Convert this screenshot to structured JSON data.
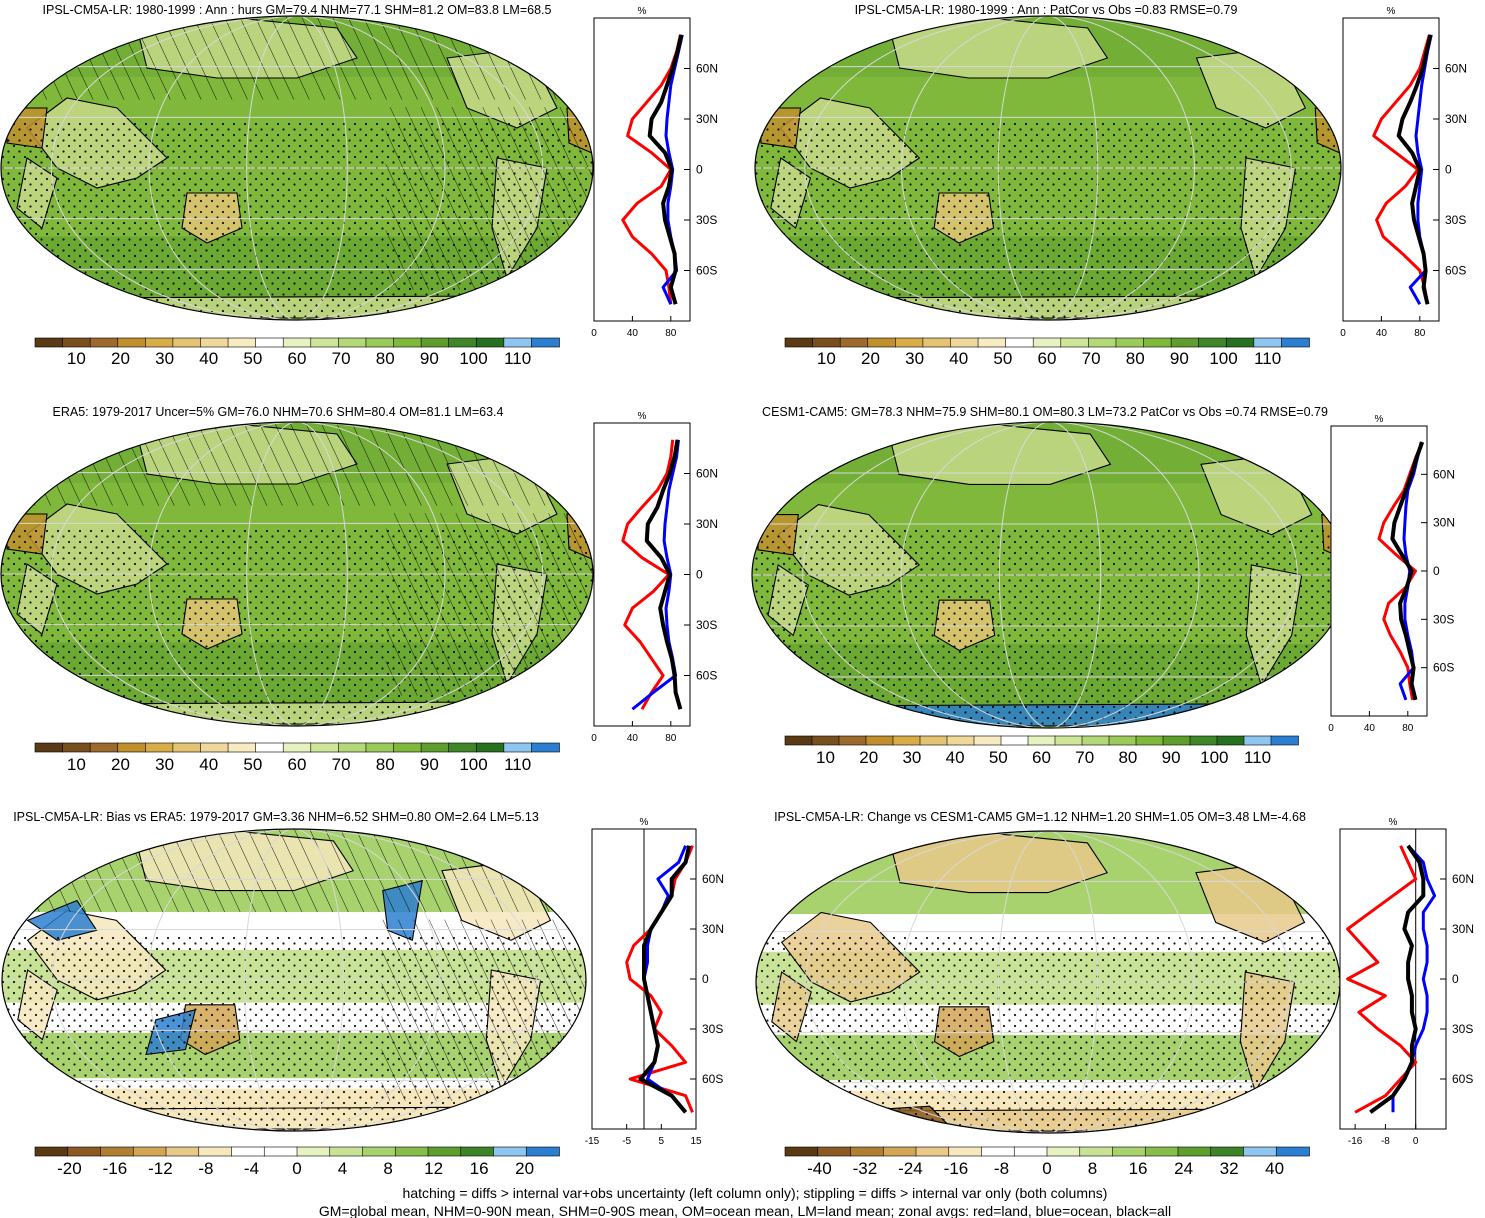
{
  "footer": {
    "line1": "hatching = diffs > internal var+obs uncertainty (left column only); stippling = diffs > internal var only (both columns)",
    "line2": "GM=global mean, NHM=0-90N mean, SHM=0-90S mean, OM=ocean mean, LM=land mean; zonal avgs: red=land, blue=ocean, black=all"
  },
  "colors": {
    "land": "#ff0000",
    "ocean": "#0000ff",
    "all": "#000000",
    "map_fill": "#7fb83a",
    "abs_palette": [
      "#5a3a14",
      "#7a4f1e",
      "#9b6a2c",
      "#c08f2e",
      "#d8ad48",
      "#e4c474",
      "#efd89a",
      "#f7ebc2",
      "#ffffff",
      "#e6f2c0",
      "#cde69a",
      "#b4d878",
      "#9bca5a",
      "#7fb83a",
      "#5f9e2e",
      "#3f8628",
      "#26701f",
      "#8ec6f0",
      "#2c7fd0"
    ],
    "diff_palette": [
      "#5a3a14",
      "#8a5a22",
      "#b07f33",
      "#d2a655",
      "#e8c98a",
      "#f6e7bd",
      "#ffffff",
      "#ffffff",
      "#e6f2c0",
      "#c8e396",
      "#a8d26e",
      "#86bd4b",
      "#5f9e2e",
      "#3d8327",
      "#8ec6f0",
      "#2c7fd0"
    ]
  },
  "chart_data": [
    {
      "type": "heatmap",
      "panel": "model-climatology",
      "title": "IPSL-CM5A-LR: 1980-1999 : Ann : hurs GM=79.4 NHM=77.1 SHM=81.2 OM=83.8 LM=68.5",
      "colorbar_ticks": [
        "10",
        "20",
        "30",
        "40",
        "50",
        "60",
        "70",
        "80",
        "90",
        "100",
        "110"
      ],
      "hatching": true,
      "zonal": {
        "unit_label": "%",
        "xlim": [
          0,
          100
        ],
        "xticks": [
          "0",
          "40",
          "80"
        ],
        "ylim": [
          -90,
          90
        ],
        "yticks": [
          "60N",
          "30N",
          "0",
          "30S",
          "60S"
        ],
        "lat": [
          80,
          70,
          60,
          50,
          40,
          30,
          20,
          10,
          0,
          -10,
          -20,
          -30,
          -40,
          -50,
          -60,
          -70,
          -80
        ],
        "series": [
          {
            "name": "land",
            "values": [
              90,
              86,
              80,
              70,
              55,
              40,
              35,
              60,
              80,
              70,
              45,
              30,
              40,
              60,
              75,
              78,
              80
            ]
          },
          {
            "name": "ocean",
            "values": [
              92,
              88,
              84,
              80,
              78,
              76,
              75,
              78,
              82,
              80,
              77,
              77,
              80,
              84,
              86,
              72,
              80
            ]
          },
          {
            "name": "all",
            "values": [
              91,
              87,
              82,
              76,
              70,
              60,
              58,
              74,
              81,
              78,
              72,
              74,
              79,
              84,
              85,
              80,
              85
            ]
          }
        ]
      }
    },
    {
      "type": "heatmap",
      "panel": "pattern-vs-obs",
      "title": "IPSL-CM5A-LR: 1980-1999 : Ann : PatCor vs Obs =0.83 RMSE=0.79",
      "colorbar_ticks": [
        "10",
        "20",
        "30",
        "40",
        "50",
        "60",
        "70",
        "80",
        "90",
        "100",
        "110"
      ],
      "hatching": false,
      "zonal": {
        "unit_label": "%",
        "xlim": [
          0,
          100
        ],
        "xticks": [
          "0",
          "40",
          "80"
        ],
        "ylim": [
          -90,
          90
        ],
        "yticks": [
          "60N",
          "30N",
          "0",
          "30S",
          "60S"
        ],
        "lat": [
          80,
          70,
          60,
          50,
          40,
          30,
          20,
          10,
          0,
          -10,
          -20,
          -30,
          -40,
          -50,
          -60,
          -70,
          -80
        ],
        "series": [
          {
            "name": "land",
            "values": [
              90,
              85,
              80,
              70,
              55,
              40,
              32,
              55,
              78,
              65,
              45,
              35,
              42,
              62,
              80,
              85,
              88
            ]
          },
          {
            "name": "ocean",
            "values": [
              92,
              88,
              85,
              82,
              80,
              78,
              76,
              78,
              82,
              80,
              78,
              78,
              80,
              84,
              86,
              70,
              80
            ]
          },
          {
            "name": "all",
            "values": [
              91,
              87,
              83,
              77,
              70,
              62,
              58,
              72,
              80,
              76,
              72,
              74,
              79,
              84,
              86,
              84,
              88
            ]
          }
        ]
      }
    },
    {
      "type": "heatmap",
      "panel": "reanalysis",
      "title": "ERA5: 1979-2017 Uncer=5% GM=76.0 NHM=70.6 SHM=80.4 OM=81.1 LM=63.4",
      "colorbar_ticks": [
        "10",
        "20",
        "30",
        "40",
        "50",
        "60",
        "70",
        "80",
        "90",
        "100",
        "110"
      ],
      "hatching": true,
      "zonal": {
        "unit_label": "%",
        "xlim": [
          0,
          100
        ],
        "xticks": [
          "0",
          "40",
          "80"
        ],
        "ylim": [
          -90,
          90
        ],
        "yticks": [
          "60N",
          "30N",
          "0",
          "30S",
          "60S"
        ],
        "lat": [
          80,
          70,
          60,
          50,
          40,
          30,
          20,
          10,
          0,
          -10,
          -20,
          -30,
          -40,
          -50,
          -60,
          -70,
          -80
        ],
        "series": [
          {
            "name": "land",
            "values": [
              82,
              80,
              76,
              66,
              50,
              35,
              30,
              50,
              78,
              62,
              40,
              32,
              48,
              60,
              72,
              60,
              50
            ]
          },
          {
            "name": "ocean",
            "values": [
              88,
              86,
              82,
              78,
              76,
              74,
              73,
              76,
              80,
              78,
              75,
              76,
              78,
              82,
              85,
              62,
              40
            ]
          },
          {
            "name": "all",
            "values": [
              87,
              84,
              79,
              72,
              66,
              56,
              55,
              70,
              79,
              74,
              69,
              72,
              76,
              81,
              84,
              85,
              90
            ]
          }
        ]
      }
    },
    {
      "type": "heatmap",
      "panel": "other-model-climatology",
      "title": "CESM1-CAM5: GM=78.3 NHM=75.9 SHM=80.1 OM=80.3 LM=73.2 PatCor vs Obs =0.74 RMSE=0.79",
      "colorbar_ticks": [
        "10",
        "20",
        "30",
        "40",
        "50",
        "60",
        "70",
        "80",
        "90",
        "100",
        "110"
      ],
      "hatching": false,
      "zonal": {
        "unit_label": "%",
        "xlim": [
          0,
          100
        ],
        "xticks": [
          "0",
          "40",
          "80"
        ],
        "ylim": [
          -90,
          90
        ],
        "yticks": [
          "60N",
          "30N",
          "0",
          "30S",
          "60S"
        ],
        "lat": [
          80,
          70,
          60,
          50,
          40,
          30,
          20,
          10,
          0,
          -10,
          -20,
          -30,
          -40,
          -50,
          -60,
          -70,
          -80
        ],
        "series": [
          {
            "name": "land",
            "values": [
              95,
              88,
              82,
              76,
              65,
              55,
              50,
              68,
              88,
              78,
              60,
              55,
              62,
              72,
              80,
              82,
              85
            ]
          },
          {
            "name": "ocean",
            "values": [
              94,
              90,
              86,
              80,
              78,
              77,
              76,
              78,
              82,
              80,
              77,
              77,
              80,
              84,
              86,
              72,
              78
            ]
          },
          {
            "name": "all",
            "values": [
              95,
              89,
              84,
              78,
              72,
              66,
              64,
              74,
              84,
              79,
              72,
              73,
              78,
              82,
              86,
              84,
              88
            ]
          }
        ]
      }
    },
    {
      "type": "heatmap",
      "panel": "bias",
      "title": "IPSL-CM5A-LR: Bias vs ERA5: 1979-2017 GM=3.36 NHM=6.52 SHM=0.80 OM=2.64 LM=5.13",
      "colorbar_ticks": [
        "-20",
        "-16",
        "-12",
        "-8",
        "-4",
        "0",
        "4",
        "8",
        "12",
        "16",
        "20"
      ],
      "hatching": true,
      "zonal": {
        "unit_label": "%",
        "xlim": [
          -15,
          15
        ],
        "xticks": [
          "-15",
          "-5",
          "5",
          "15"
        ],
        "ylim": [
          -90,
          90
        ],
        "yticks": [
          "60N",
          "30N",
          "0",
          "30S",
          "60S"
        ],
        "lat": [
          80,
          70,
          60,
          50,
          40,
          30,
          20,
          10,
          0,
          -10,
          -20,
          -30,
          -40,
          -50,
          -60,
          -70,
          -80
        ],
        "series": [
          {
            "name": "land",
            "values": [
              14,
              12,
              9,
              8,
              5,
              2,
              -3,
              -5,
              -4,
              2,
              5,
              3,
              8,
              12,
              -4,
              12,
              14
            ]
          },
          {
            "name": "ocean",
            "values": [
              12,
              10,
              4,
              7,
              5,
              2,
              1,
              1,
              0,
              1,
              2,
              3,
              4,
              3,
              1,
              8,
              12
            ]
          },
          {
            "name": "all",
            "values": [
              13,
              12,
              8,
              8,
              5,
              2,
              0,
              0,
              0,
              1,
              2,
              3,
              4,
              3,
              -1,
              8,
              12
            ]
          }
        ]
      }
    },
    {
      "type": "heatmap",
      "panel": "change",
      "title": "IPSL-CM5A-LR: Change vs CESM1-CAM5 GM=1.12 NHM=1.20 SHM=1.05 OM=3.48 LM=-4.68",
      "colorbar_ticks": [
        "-40",
        "-32",
        "-24",
        "-16",
        "-8",
        "0",
        "8",
        "16",
        "24",
        "32",
        "40"
      ],
      "hatching": false,
      "zonal": {
        "unit_label": "%",
        "xlim": [
          -20,
          8
        ],
        "xticks": [
          "-16",
          "-8",
          "0"
        ],
        "ylim": [
          -90,
          90
        ],
        "yticks": [
          "60N",
          "30N",
          "0",
          "30S",
          "60S"
        ],
        "lat": [
          80,
          70,
          60,
          50,
          40,
          30,
          20,
          10,
          0,
          -10,
          -20,
          -30,
          -40,
          -50,
          -60,
          -70,
          -80
        ],
        "series": [
          {
            "name": "land",
            "values": [
              -4,
              -2,
              0,
              -6,
              -12,
              -18,
              -14,
              -10,
              -18,
              -8,
              -15,
              -10,
              -4,
              0,
              -4,
              -8,
              -16
            ]
          },
          {
            "name": "ocean",
            "values": [
              -2,
              2,
              3,
              5,
              2,
              2,
              3,
              3,
              2,
              3,
              3,
              2,
              0,
              -1,
              -3,
              -6,
              -6
            ]
          },
          {
            "name": "all",
            "values": [
              -2,
              1,
              2,
              2,
              -2,
              -3,
              -1,
              -2,
              -2,
              -1,
              -1,
              0,
              -1,
              -1,
              -3,
              -6,
              -12
            ]
          }
        ]
      }
    }
  ]
}
